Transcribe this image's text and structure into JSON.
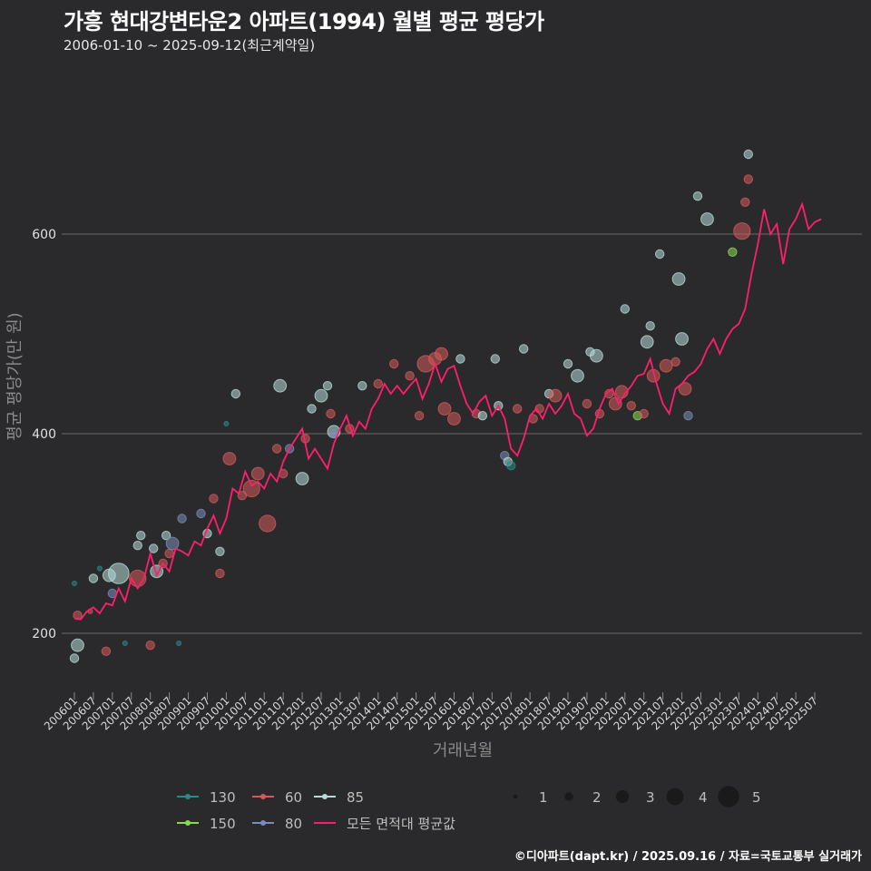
{
  "header": {
    "title": "가흥 현대강변타운2 아파트(1994) 월별 평균 평당가",
    "subtitle": "2006-01-10 ~ 2025-09-12(최근계약일)"
  },
  "footer": {
    "credit": "©디아파트(dapt.kr) / 2025.09.16 / 자료=국토교통부 실거래가"
  },
  "colors": {
    "background": "#2a2a2c",
    "gridline": "#6a6a6a",
    "mean_line": "#ff1f6b",
    "a130": "#2a8a8a",
    "a150": "#8ad855",
    "a60": "#d45a5a",
    "a80": "#7a8db8",
    "a85": "#b7dcd8"
  },
  "chart_data": {
    "type": "scatter",
    "title": "가흥 현대강변타운2 아파트(1994) 월별 평균 평당가",
    "xlabel": "거래년월",
    "ylabel": "평균 평당가(만 원)",
    "ylim": [
      130,
      780
    ],
    "yticks": [
      200,
      400,
      600
    ],
    "xticks": [
      "200601",
      "200607",
      "200701",
      "200707",
      "200801",
      "200807",
      "200901",
      "200907",
      "201001",
      "201007",
      "201101",
      "201107",
      "201201",
      "201207",
      "201301",
      "201307",
      "201401",
      "201407",
      "201501",
      "201507",
      "201601",
      "201607",
      "201701",
      "201707",
      "201801",
      "201807",
      "201901",
      "201907",
      "202001",
      "202007",
      "202101",
      "202107",
      "202201",
      "202207",
      "202301",
      "202307",
      "202401",
      "202407",
      "202501",
      "202507"
    ],
    "grid": true,
    "legend_area": {
      "title": "",
      "items": [
        {
          "key": "a130",
          "label": "130"
        },
        {
          "key": "a60",
          "label": "60"
        },
        {
          "key": "a85",
          "label": "85"
        },
        {
          "key": "a150",
          "label": "150"
        },
        {
          "key": "a80",
          "label": "80"
        },
        {
          "key": "mean",
          "label": "모든 면적대 평균값"
        }
      ]
    },
    "legend_size": {
      "labels": [
        "1",
        "2",
        "3",
        "4",
        "5"
      ]
    },
    "mean_line": [
      [
        "2006-01",
        215
      ],
      [
        "2006-03",
        214
      ],
      [
        "2006-05",
        222
      ],
      [
        "2006-07",
        226
      ],
      [
        "2006-09",
        220
      ],
      [
        "2006-11",
        230
      ],
      [
        "2007-01",
        228
      ],
      [
        "2007-03",
        245
      ],
      [
        "2007-05",
        232
      ],
      [
        "2007-07",
        255
      ],
      [
        "2007-09",
        245
      ],
      [
        "2007-11",
        255
      ],
      [
        "2008-01",
        280
      ],
      [
        "2008-03",
        258
      ],
      [
        "2008-05",
        270
      ],
      [
        "2008-07",
        262
      ],
      [
        "2008-09",
        285
      ],
      [
        "2008-11",
        282
      ],
      [
        "2009-01",
        278
      ],
      [
        "2009-03",
        292
      ],
      [
        "2009-05",
        288
      ],
      [
        "2009-07",
        305
      ],
      [
        "2009-09",
        318
      ],
      [
        "2009-11",
        300
      ],
      [
        "2010-01",
        315
      ],
      [
        "2010-03",
        345
      ],
      [
        "2010-05",
        340
      ],
      [
        "2010-07",
        362
      ],
      [
        "2010-09",
        348
      ],
      [
        "2010-11",
        352
      ],
      [
        "2011-01",
        345
      ],
      [
        "2011-03",
        360
      ],
      [
        "2011-05",
        352
      ],
      [
        "2011-07",
        372
      ],
      [
        "2011-09",
        385
      ],
      [
        "2011-11",
        395
      ],
      [
        "2012-01",
        405
      ],
      [
        "2012-03",
        375
      ],
      [
        "2012-05",
        385
      ],
      [
        "2012-07",
        375
      ],
      [
        "2012-09",
        365
      ],
      [
        "2012-11",
        390
      ],
      [
        "2013-01",
        405
      ],
      [
        "2013-03",
        418
      ],
      [
        "2013-05",
        398
      ],
      [
        "2013-07",
        412
      ],
      [
        "2013-09",
        405
      ],
      [
        "2013-11",
        425
      ],
      [
        "2014-01",
        435
      ],
      [
        "2014-03",
        450
      ],
      [
        "2014-05",
        440
      ],
      [
        "2014-07",
        448
      ],
      [
        "2014-09",
        440
      ],
      [
        "2014-11",
        448
      ],
      [
        "2015-01",
        455
      ],
      [
        "2015-03",
        435
      ],
      [
        "2015-05",
        450
      ],
      [
        "2015-07",
        470
      ],
      [
        "2015-09",
        452
      ],
      [
        "2015-11",
        465
      ],
      [
        "2016-01",
        468
      ],
      [
        "2016-03",
        448
      ],
      [
        "2016-05",
        430
      ],
      [
        "2016-07",
        420
      ],
      [
        "2016-09",
        432
      ],
      [
        "2016-11",
        438
      ],
      [
        "2017-01",
        418
      ],
      [
        "2017-03",
        428
      ],
      [
        "2017-05",
        415
      ],
      [
        "2017-07",
        385
      ],
      [
        "2017-09",
        378
      ],
      [
        "2017-11",
        395
      ],
      [
        "2018-01",
        418
      ],
      [
        "2018-03",
        425
      ],
      [
        "2018-05",
        415
      ],
      [
        "2018-07",
        430
      ],
      [
        "2018-09",
        420
      ],
      [
        "2018-11",
        428
      ],
      [
        "2019-01",
        440
      ],
      [
        "2019-03",
        420
      ],
      [
        "2019-05",
        415
      ],
      [
        "2019-07",
        398
      ],
      [
        "2019-09",
        405
      ],
      [
        "2019-11",
        425
      ],
      [
        "2020-01",
        440
      ],
      [
        "2020-03",
        445
      ],
      [
        "2020-05",
        430
      ],
      [
        "2020-07",
        440
      ],
      [
        "2020-09",
        448
      ],
      [
        "2020-11",
        458
      ],
      [
        "2021-01",
        460
      ],
      [
        "2021-03",
        475
      ],
      [
        "2021-05",
        450
      ],
      [
        "2021-07",
        430
      ],
      [
        "2021-09",
        420
      ],
      [
        "2021-11",
        445
      ],
      [
        "2022-01",
        450
      ],
      [
        "2022-03",
        458
      ],
      [
        "2022-05",
        462
      ],
      [
        "2022-07",
        470
      ],
      [
        "2022-09",
        485
      ],
      [
        "2022-11",
        495
      ],
      [
        "2023-01",
        480
      ],
      [
        "2023-03",
        495
      ],
      [
        "2023-05",
        505
      ],
      [
        "2023-07",
        510
      ],
      [
        "2023-09",
        525
      ],
      [
        "2023-11",
        560
      ],
      [
        "2024-01",
        590
      ],
      [
        "2024-03",
        625
      ],
      [
        "2024-05",
        600
      ],
      [
        "2024-07",
        610
      ],
      [
        "2024-09",
        570
      ],
      [
        "2024-11",
        605
      ],
      [
        "2025-01",
        615
      ],
      [
        "2025-03",
        630
      ],
      [
        "2025-05",
        605
      ],
      [
        "2025-07",
        612
      ],
      [
        "2025-09",
        615
      ]
    ],
    "points": [
      {
        "s": "a85",
        "t": "2006-01",
        "v": 175,
        "n": 2
      },
      {
        "s": "a85",
        "t": "2006-02",
        "v": 188,
        "n": 3
      },
      {
        "s": "a60",
        "t": "2006-02",
        "v": 218,
        "n": 2
      },
      {
        "s": "a130",
        "t": "2006-01",
        "v": 250,
        "n": 1
      },
      {
        "s": "a85",
        "t": "2006-07",
        "v": 255,
        "n": 2
      },
      {
        "s": "a60",
        "t": "2006-06",
        "v": 222,
        "n": 1
      },
      {
        "s": "a130",
        "t": "2006-09",
        "v": 265,
        "n": 1
      },
      {
        "s": "a60",
        "t": "2006-11",
        "v": 182,
        "n": 2
      },
      {
        "s": "a85",
        "t": "2006-12",
        "v": 258,
        "n": 3
      },
      {
        "s": "a80",
        "t": "2007-01",
        "v": 240,
        "n": 2
      },
      {
        "s": "a85",
        "t": "2007-03",
        "v": 260,
        "n": 5
      },
      {
        "s": "a130",
        "t": "2007-05",
        "v": 190,
        "n": 1
      },
      {
        "s": "a85",
        "t": "2007-10",
        "v": 298,
        "n": 2
      },
      {
        "s": "a85",
        "t": "2007-09",
        "v": 288,
        "n": 2
      },
      {
        "s": "a60",
        "t": "2007-09",
        "v": 255,
        "n": 4
      },
      {
        "s": "a60",
        "t": "2008-01",
        "v": 188,
        "n": 2
      },
      {
        "s": "a85",
        "t": "2008-02",
        "v": 285,
        "n": 2
      },
      {
        "s": "a85",
        "t": "2008-03",
        "v": 262,
        "n": 3
      },
      {
        "s": "a60",
        "t": "2008-05",
        "v": 270,
        "n": 2
      },
      {
        "s": "a85",
        "t": "2008-06",
        "v": 298,
        "n": 2
      },
      {
        "s": "a60",
        "t": "2008-07",
        "v": 280,
        "n": 2
      },
      {
        "s": "a80",
        "t": "2008-08",
        "v": 290,
        "n": 3
      },
      {
        "s": "a130",
        "t": "2008-10",
        "v": 190,
        "n": 1
      },
      {
        "s": "a80",
        "t": "2008-11",
        "v": 315,
        "n": 2
      },
      {
        "s": "a80",
        "t": "2009-05",
        "v": 320,
        "n": 2
      },
      {
        "s": "a85",
        "t": "2009-07",
        "v": 300,
        "n": 2
      },
      {
        "s": "a60",
        "t": "2009-09",
        "v": 335,
        "n": 2
      },
      {
        "s": "a60",
        "t": "2009-11",
        "v": 260,
        "n": 2
      },
      {
        "s": "a85",
        "t": "2009-11",
        "v": 282,
        "n": 2
      },
      {
        "s": "a130",
        "t": "2010-01",
        "v": 410,
        "n": 1
      },
      {
        "s": "a60",
        "t": "2010-02",
        "v": 375,
        "n": 3
      },
      {
        "s": "a85",
        "t": "2010-04",
        "v": 440,
        "n": 2
      },
      {
        "s": "a60",
        "t": "2010-06",
        "v": 338,
        "n": 2
      },
      {
        "s": "a60",
        "t": "2010-09",
        "v": 345,
        "n": 4
      },
      {
        "s": "a60",
        "t": "2010-11",
        "v": 360,
        "n": 3
      },
      {
        "s": "a60",
        "t": "2011-02",
        "v": 310,
        "n": 4
      },
      {
        "s": "a60",
        "t": "2011-05",
        "v": 385,
        "n": 2
      },
      {
        "s": "a85",
        "t": "2011-06",
        "v": 448,
        "n": 3
      },
      {
        "s": "a60",
        "t": "2011-07",
        "v": 360,
        "n": 2
      },
      {
        "s": "a80",
        "t": "2011-09",
        "v": 385,
        "n": 2
      },
      {
        "s": "a85",
        "t": "2012-01",
        "v": 355,
        "n": 3
      },
      {
        "s": "a60",
        "t": "2012-02",
        "v": 395,
        "n": 2
      },
      {
        "s": "a85",
        "t": "2012-04",
        "v": 425,
        "n": 2
      },
      {
        "s": "a85",
        "t": "2012-07",
        "v": 438,
        "n": 3
      },
      {
        "s": "a85",
        "t": "2012-09",
        "v": 448,
        "n": 2
      },
      {
        "s": "a60",
        "t": "2012-10",
        "v": 420,
        "n": 2
      },
      {
        "s": "a85",
        "t": "2012-11",
        "v": 402,
        "n": 3
      },
      {
        "s": "a80",
        "t": "2012-11",
        "v": 400,
        "n": 2
      },
      {
        "s": "a60",
        "t": "2013-04",
        "v": 405,
        "n": 2
      },
      {
        "s": "a85",
        "t": "2013-08",
        "v": 448,
        "n": 2
      },
      {
        "s": "a60",
        "t": "2014-01",
        "v": 450,
        "n": 2
      },
      {
        "s": "a60",
        "t": "2014-06",
        "v": 470,
        "n": 2
      },
      {
        "s": "a60",
        "t": "2014-11",
        "v": 458,
        "n": 2
      },
      {
        "s": "a60",
        "t": "2015-02",
        "v": 418,
        "n": 2
      },
      {
        "s": "a60",
        "t": "2015-04",
        "v": 470,
        "n": 4
      },
      {
        "s": "a60",
        "t": "2015-07",
        "v": 475,
        "n": 3
      },
      {
        "s": "a60",
        "t": "2015-09",
        "v": 480,
        "n": 3
      },
      {
        "s": "a60",
        "t": "2015-10",
        "v": 425,
        "n": 3
      },
      {
        "s": "a60",
        "t": "2016-01",
        "v": 415,
        "n": 3
      },
      {
        "s": "a85",
        "t": "2016-03",
        "v": 475,
        "n": 2
      },
      {
        "s": "a60",
        "t": "2016-08",
        "v": 420,
        "n": 2
      },
      {
        "s": "a85",
        "t": "2016-10",
        "v": 418,
        "n": 2
      },
      {
        "s": "a85",
        "t": "2017-02",
        "v": 475,
        "n": 2
      },
      {
        "s": "a85",
        "t": "2017-03",
        "v": 428,
        "n": 2
      },
      {
        "s": "a80",
        "t": "2017-05",
        "v": 378,
        "n": 2
      },
      {
        "s": "a85",
        "t": "2017-06",
        "v": 372,
        "n": 2
      },
      {
        "s": "a130",
        "t": "2017-07",
        "v": 368,
        "n": 2
      },
      {
        "s": "a60",
        "t": "2017-09",
        "v": 425,
        "n": 2
      },
      {
        "s": "a85",
        "t": "2017-11",
        "v": 485,
        "n": 2
      },
      {
        "s": "a60",
        "t": "2018-02",
        "v": 415,
        "n": 2
      },
      {
        "s": "a60",
        "t": "2018-04",
        "v": 425,
        "n": 2
      },
      {
        "s": "a85",
        "t": "2018-07",
        "v": 440,
        "n": 2
      },
      {
        "s": "a60",
        "t": "2018-09",
        "v": 438,
        "n": 3
      },
      {
        "s": "a85",
        "t": "2019-01",
        "v": 470,
        "n": 2
      },
      {
        "s": "a85",
        "t": "2019-04",
        "v": 458,
        "n": 3
      },
      {
        "s": "a60",
        "t": "2019-07",
        "v": 430,
        "n": 2
      },
      {
        "s": "a85",
        "t": "2019-08",
        "v": 482,
        "n": 2
      },
      {
        "s": "a85",
        "t": "2019-10",
        "v": 478,
        "n": 3
      },
      {
        "s": "a60",
        "t": "2019-11",
        "v": 420,
        "n": 2
      },
      {
        "s": "a60",
        "t": "2020-02",
        "v": 440,
        "n": 2
      },
      {
        "s": "a60",
        "t": "2020-04",
        "v": 430,
        "n": 3
      },
      {
        "s": "a60",
        "t": "2020-06",
        "v": 442,
        "n": 3
      },
      {
        "s": "a85",
        "t": "2020-07",
        "v": 525,
        "n": 2
      },
      {
        "s": "a60",
        "t": "2020-09",
        "v": 428,
        "n": 2
      },
      {
        "s": "a150",
        "t": "2020-11",
        "v": 418,
        "n": 2
      },
      {
        "s": "a60",
        "t": "2021-01",
        "v": 420,
        "n": 2
      },
      {
        "s": "a85",
        "t": "2021-02",
        "v": 492,
        "n": 3
      },
      {
        "s": "a85",
        "t": "2021-03",
        "v": 508,
        "n": 2
      },
      {
        "s": "a60",
        "t": "2021-04",
        "v": 458,
        "n": 3
      },
      {
        "s": "a85",
        "t": "2021-06",
        "v": 580,
        "n": 2
      },
      {
        "s": "a60",
        "t": "2021-08",
        "v": 468,
        "n": 3
      },
      {
        "s": "a60",
        "t": "2021-11",
        "v": 472,
        "n": 2
      },
      {
        "s": "a85",
        "t": "2021-12",
        "v": 555,
        "n": 3
      },
      {
        "s": "a85",
        "t": "2022-01",
        "v": 495,
        "n": 3
      },
      {
        "s": "a60",
        "t": "2022-02",
        "v": 445,
        "n": 3
      },
      {
        "s": "a80",
        "t": "2022-03",
        "v": 418,
        "n": 2
      },
      {
        "s": "a85",
        "t": "2022-06",
        "v": 638,
        "n": 2
      },
      {
        "s": "a85",
        "t": "2022-09",
        "v": 615,
        "n": 3
      },
      {
        "s": "a150",
        "t": "2023-05",
        "v": 582,
        "n": 2
      },
      {
        "s": "a60",
        "t": "2023-08",
        "v": 603,
        "n": 4
      },
      {
        "s": "a85",
        "t": "2023-10",
        "v": 680,
        "n": 2
      },
      {
        "s": "a60",
        "t": "2023-10",
        "v": 655,
        "n": 2
      },
      {
        "s": "a60",
        "t": "2023-09",
        "v": 632,
        "n": 2
      }
    ]
  }
}
